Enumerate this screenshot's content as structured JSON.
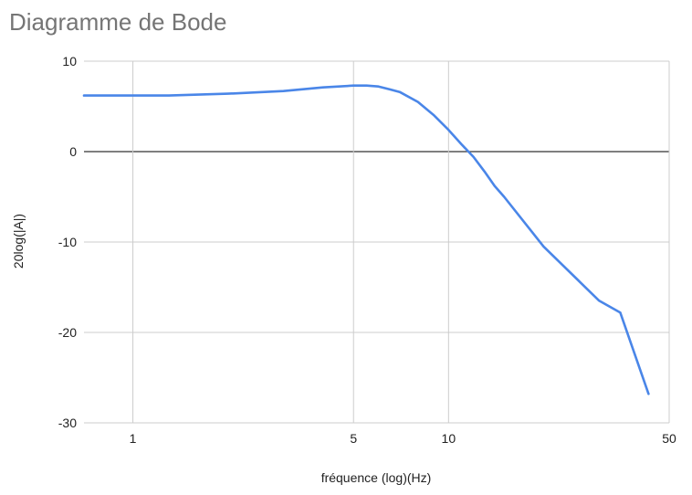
{
  "chart_data": {
    "type": "line",
    "title": "Diagramme de Bode",
    "xlabel": "fréquence (log)(Hz)",
    "ylabel": "20log(|A|)",
    "x_scale": "log",
    "xlim": [
      0.7,
      50
    ],
    "ylim": [
      -30,
      10
    ],
    "x_ticks": [
      1,
      5,
      10,
      50
    ],
    "y_ticks": [
      10,
      0,
      -10,
      -20,
      -30
    ],
    "grid": true,
    "legend": "none",
    "series": [
      {
        "color": "#4a86e8",
        "x": [
          0.7,
          1,
          1.3,
          2,
          3,
          4,
          5,
          5.5,
          6,
          6.5,
          7,
          8,
          9,
          10,
          11,
          12,
          13,
          14,
          15,
          20,
          30,
          35,
          43
        ],
        "y": [
          6.2,
          6.2,
          6.2,
          6.4,
          6.7,
          7.1,
          7.3,
          7.3,
          7.2,
          6.9,
          6.6,
          5.5,
          4.0,
          2.4,
          0.8,
          -0.6,
          -2.2,
          -3.8,
          -5.0,
          -10.5,
          -16.5,
          -17.8,
          -26.8
        ]
      }
    ]
  }
}
